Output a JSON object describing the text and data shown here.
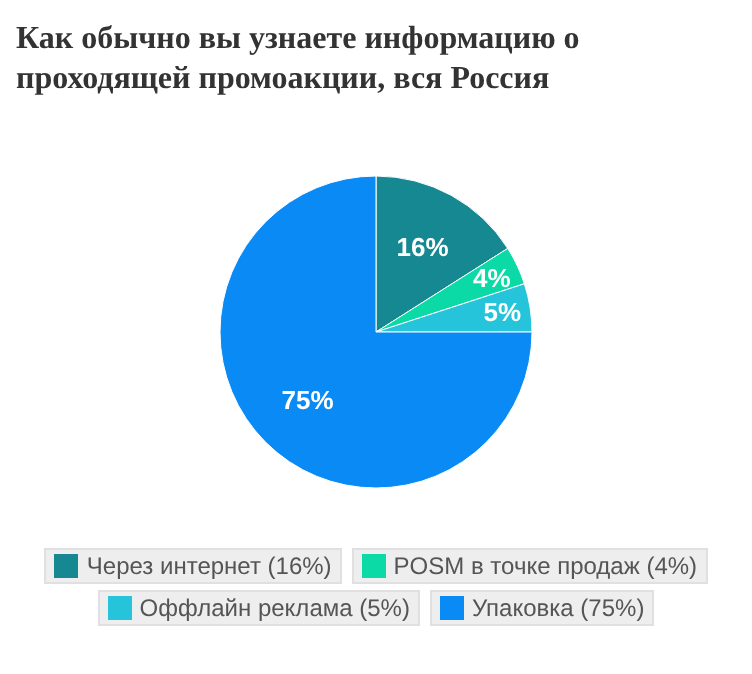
{
  "chart_data": {
    "type": "pie",
    "title": "Как обычно вы узнаете информацию о проходящей промоакции, вся Россия",
    "categories": [
      "Через интернет (16%)",
      "POSM в точке продаж (4%)",
      "Оффлайн реклама (5%)",
      "Упаковка (75%)"
    ],
    "values": [
      16,
      4,
      5,
      75
    ],
    "colors": [
      "#168891",
      "#0bd9a6",
      "#26c4da",
      "#0a8af5"
    ],
    "value_labels": [
      "16%",
      "4%",
      "5%",
      "75%"
    ],
    "legend": "bottom"
  }
}
